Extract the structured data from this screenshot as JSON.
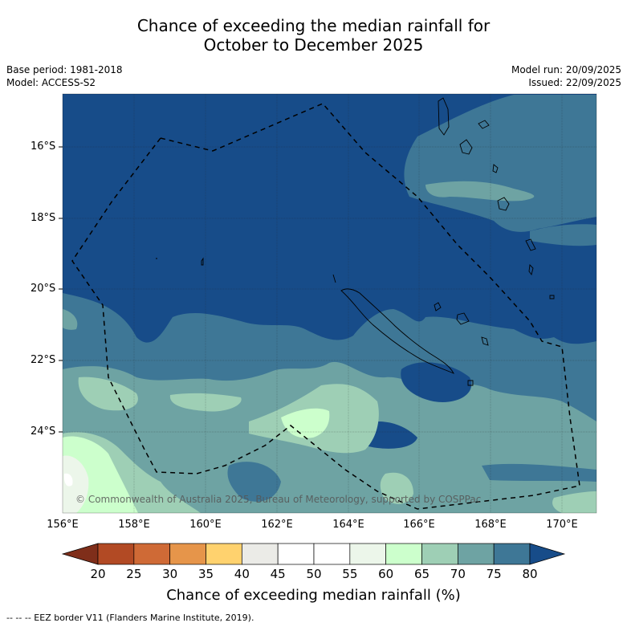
{
  "title_line1": "Chance of exceeding the median rainfall for",
  "title_line2": "October to December 2025",
  "base_period": "Base period: 1981-2018",
  "model": "Model: ACCESS-S2",
  "model_run": "Model run: 20/09/2025",
  "issued": "Issued: 22/09/2025",
  "latitude_labels": [
    "16°S",
    "18°S",
    "20°S",
    "22°S",
    "24°S"
  ],
  "longitude_labels": [
    "156°E",
    "158°E",
    "160°E",
    "162°E",
    "164°E",
    "166°E",
    "168°E",
    "170°E"
  ],
  "copyright": "© Commonwealth of Australia 2025, Bureau of Meteorology, supported by COSPPac",
  "colorbar": {
    "ticks": [
      "20",
      "25",
      "30",
      "35",
      "40",
      "45",
      "50",
      "55",
      "60",
      "65",
      "70",
      "75",
      "80"
    ],
    "colors": [
      "#7f2e1a",
      "#b24a24",
      "#cf6a36",
      "#e6954a",
      "#ffd26e",
      "#ebebe7",
      "#ffffff",
      "#ffffff",
      "#ecf6ea",
      "#ccffcc",
      "#9ecfb5",
      "#6ea3a3",
      "#3e7796",
      "#174c89"
    ],
    "title": "Chance of exceeding median rainfall (%)"
  },
  "legend_footnote": "-- -- -- EEZ border V11 (Flanders Marine Institute, 2019)."
}
